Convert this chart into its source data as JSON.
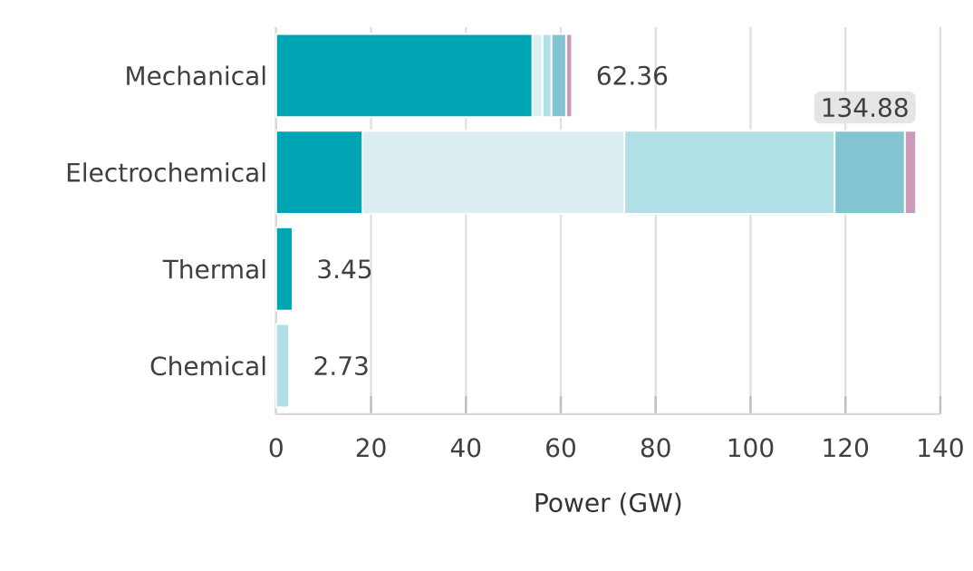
{
  "chart_data": {
    "type": "bar",
    "orientation": "horizontal",
    "stacked": true,
    "xlabel": "Power (GW)",
    "categories": [
      "Mechanical",
      "Electrochemical",
      "Thermal",
      "Chemical"
    ],
    "series": [
      {
        "color": "#00a5b3",
        "values": [
          54.0,
          18.2,
          3.45,
          null
        ]
      },
      {
        "color": "#dbeff2",
        "values": [
          2.1,
          55.2,
          null,
          null
        ]
      },
      {
        "color": "#b0dfe5",
        "values": [
          1.9,
          44.3,
          null,
          2.73
        ]
      },
      {
        "color": "#82c4cf",
        "values": [
          3.1,
          14.8,
          null,
          null
        ]
      },
      {
        "color": "#c99bb8",
        "values": [
          1.26,
          2.38,
          null,
          null
        ]
      }
    ],
    "totals": [
      "62.36",
      "134.88",
      "3.45",
      "2.73"
    ],
    "xlim": [
      0,
      140
    ],
    "xticks": [
      0,
      20,
      40,
      60,
      80,
      100,
      120,
      140
    ],
    "grid": "x"
  }
}
